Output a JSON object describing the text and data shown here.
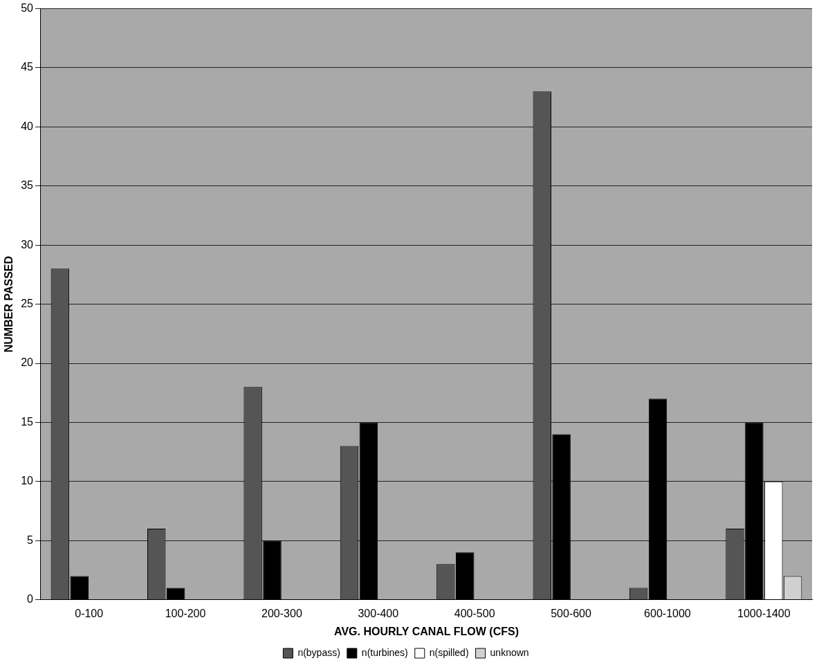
{
  "chart_data": {
    "type": "bar",
    "xlabel": "AVG. HOURLY CANAL FLOW (CFS)",
    "ylabel": "NUMBER PASSED",
    "categories": [
      "0-100",
      "100-200",
      "200-300",
      "300-400",
      "400-500",
      "500-600",
      "600-1000",
      "1000-1400"
    ],
    "series": [
      {
        "name": "n(bypass)",
        "color": "#555555",
        "values": [
          28,
          6,
          18,
          13,
          3,
          43,
          1,
          6
        ]
      },
      {
        "name": "n(turbines)",
        "color": "#000000",
        "values": [
          2,
          1,
          5,
          15,
          4,
          14,
          17,
          15
        ]
      },
      {
        "name": "n(spilled)",
        "color": "#ffffff",
        "values": [
          0,
          0,
          0,
          0,
          0,
          0,
          0,
          10
        ]
      },
      {
        "name": "unknown",
        "color": "#d0d0d0",
        "values": [
          0,
          0,
          0,
          0,
          0,
          0,
          0,
          2
        ]
      }
    ],
    "ylim": [
      0,
      50
    ],
    "yticks": [
      0,
      5,
      10,
      15,
      20,
      25,
      30,
      35,
      40,
      45,
      50
    ],
    "grid": "y",
    "legend": "bottom"
  }
}
